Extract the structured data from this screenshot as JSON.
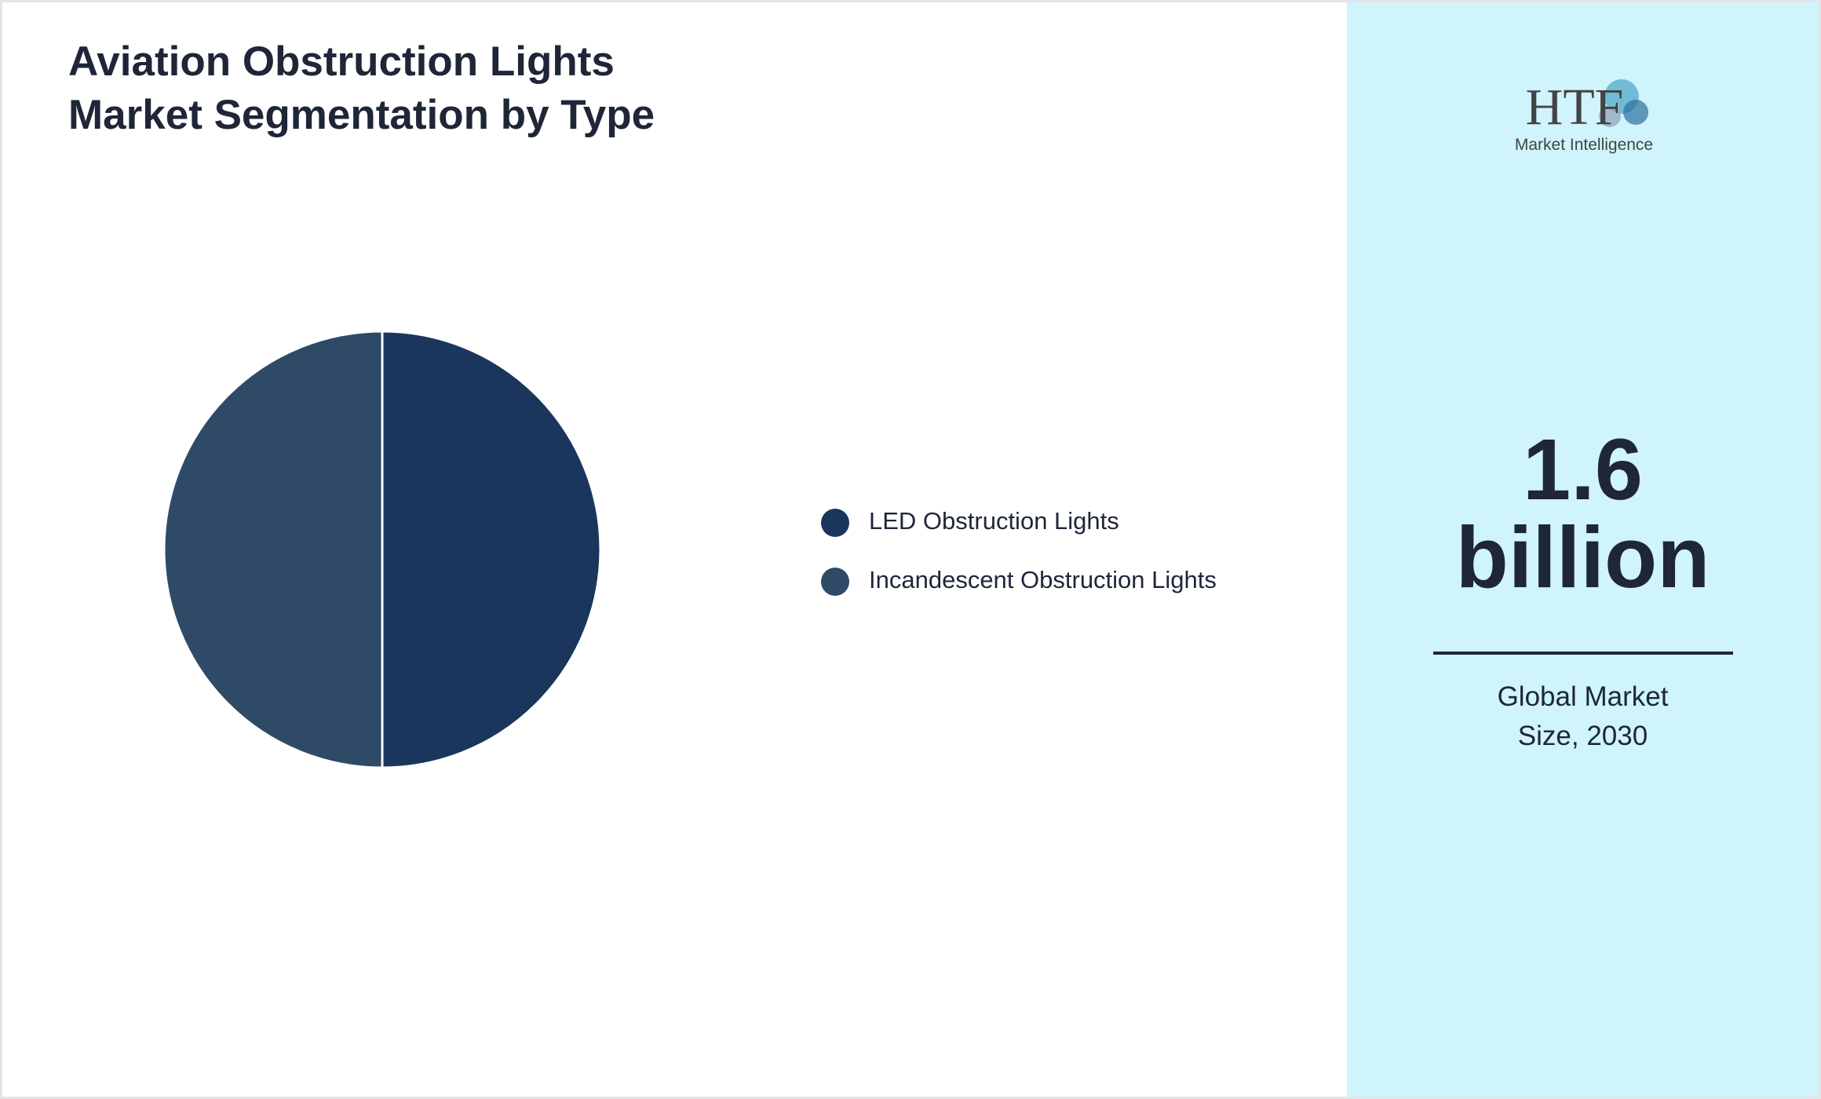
{
  "chart_data": {
    "type": "pie",
    "title": "Aviation Obstruction Lights Market Segmentation by Type",
    "categories": [
      "LED Obstruction Lights",
      "Incandescent Obstruction Lights"
    ],
    "values": [
      50,
      50
    ],
    "colors": [
      "#1b365d",
      "#2e4a66"
    ]
  },
  "sidebar": {
    "logo_text": "HTF",
    "logo_subtext": "Market Intelligence",
    "value": "1.6 billion",
    "caption": "Global Market Size, 2030"
  }
}
